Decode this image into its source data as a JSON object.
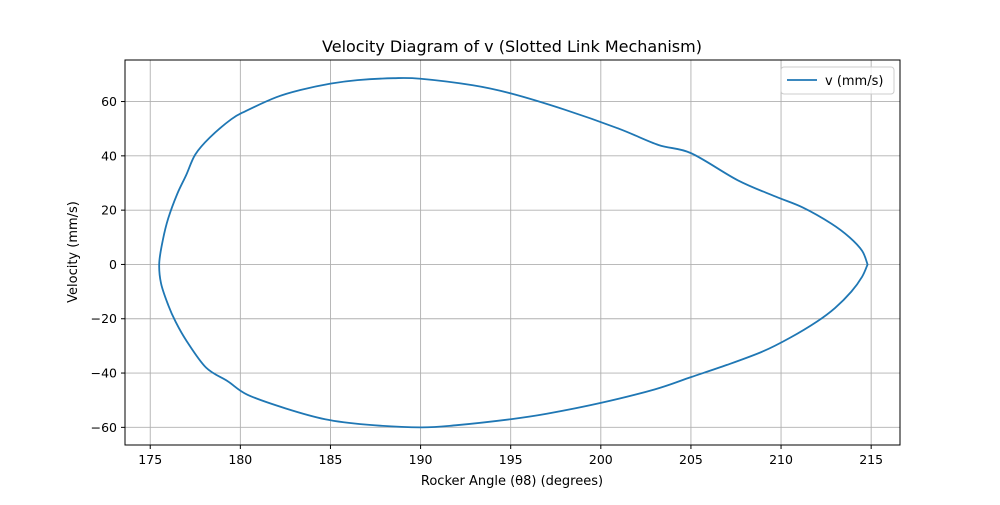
{
  "chart_data": {
    "type": "line",
    "title": "Velocity Diagram of v (Slotted Link Mechanism)",
    "xlabel": "Rocker Angle (θ8) (degrees)",
    "ylabel": "Velocity (mm/s)",
    "xlim": [
      173.6,
      216.6
    ],
    "ylim": [
      -66.5,
      75.3
    ],
    "xticks": [
      175,
      180,
      185,
      190,
      195,
      200,
      205,
      210,
      215
    ],
    "yticks": [
      -60,
      -40,
      -20,
      0,
      20,
      40,
      60
    ],
    "grid": true,
    "legend_position": "upper-right",
    "series": [
      {
        "name": "v (mm/s)",
        "color": "#1f77b4",
        "points": [
          [
            214.8,
            0
          ],
          [
            214.5,
            5
          ],
          [
            213.8,
            10
          ],
          [
            212.8,
            15
          ],
          [
            211.2,
            21
          ],
          [
            209.7,
            25
          ],
          [
            207.6,
            31
          ],
          [
            205.0,
            41
          ],
          [
            203.2,
            44
          ],
          [
            201.0,
            50
          ],
          [
            198.0,
            57
          ],
          [
            195.0,
            63
          ],
          [
            192.9,
            66
          ],
          [
            190.0,
            68.4
          ],
          [
            188.5,
            68.6
          ],
          [
            186.5,
            67.9
          ],
          [
            185.0,
            66.6
          ],
          [
            183.3,
            64.2
          ],
          [
            182.0,
            61.6
          ],
          [
            180.3,
            56.5
          ],
          [
            179.5,
            53.5
          ],
          [
            178.3,
            46.7
          ],
          [
            177.5,
            40.5
          ],
          [
            177.0,
            33.0
          ],
          [
            176.5,
            26.0
          ],
          [
            176.0,
            17.0
          ],
          [
            175.7,
            9.0
          ],
          [
            175.5,
            0.5
          ],
          [
            175.6,
            -7
          ],
          [
            176.0,
            -15
          ],
          [
            176.4,
            -21
          ],
          [
            177.0,
            -28
          ],
          [
            178.1,
            -38
          ],
          [
            179.3,
            -43
          ],
          [
            180.4,
            -48
          ],
          [
            182.5,
            -53
          ],
          [
            184.7,
            -57
          ],
          [
            187.0,
            -59
          ],
          [
            190.0,
            -60
          ],
          [
            192.0,
            -59.2
          ],
          [
            195.0,
            -57
          ],
          [
            197.0,
            -55
          ],
          [
            200.0,
            -51
          ],
          [
            203.0,
            -46
          ],
          [
            205.0,
            -41.5
          ],
          [
            207.0,
            -37
          ],
          [
            209.0,
            -32
          ],
          [
            210.5,
            -27
          ],
          [
            212.0,
            -21
          ],
          [
            213.0,
            -16
          ],
          [
            213.9,
            -10
          ],
          [
            214.5,
            -4.5
          ],
          [
            214.8,
            0
          ]
        ]
      }
    ]
  }
}
